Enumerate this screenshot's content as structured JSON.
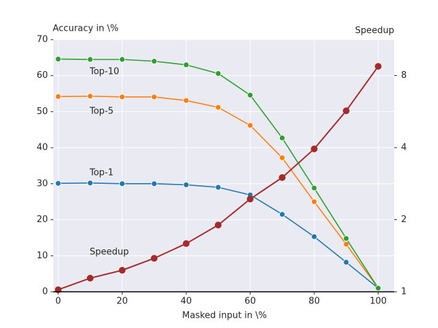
{
  "chart_data": {
    "type": "line",
    "ylabel": "Accuracy in \\%",
    "y2label": "Speedup",
    "xlabel": "Masked input in \\%",
    "x": [
      0,
      10,
      20,
      30,
      40,
      50,
      60,
      70,
      80,
      90,
      100
    ],
    "xlim": [
      -1.5,
      105
    ],
    "xticks": [
      0,
      20,
      40,
      60,
      80,
      100
    ],
    "ylim": [
      0,
      70
    ],
    "yticks": [
      0,
      10,
      20,
      30,
      40,
      50,
      60,
      70
    ],
    "y2lim": [
      1,
      11.3
    ],
    "y2ticks": [
      1,
      2,
      4,
      8
    ],
    "y2scale": "log",
    "grid": true,
    "series": [
      {
        "name": "Top-1",
        "color": "#1f77b4",
        "values": [
          30.1,
          30.2,
          30.0,
          30.0,
          29.7,
          29.0,
          26.9,
          21.5,
          15.3,
          8.2,
          1.0
        ]
      },
      {
        "name": "Top-5",
        "color": "#ff7f0e",
        "values": [
          54.2,
          54.3,
          54.1,
          54.1,
          53.1,
          51.2,
          46.2,
          37.2,
          25.0,
          13.2,
          1.0
        ]
      },
      {
        "name": "Top-10",
        "color": "#2ca02c",
        "values": [
          64.6,
          64.5,
          64.5,
          64.0,
          63.0,
          60.6,
          54.6,
          42.7,
          28.8,
          14.8,
          1.0
        ]
      },
      {
        "name": "Speedup",
        "color": "#a52a2a",
        "axis": "y2",
        "values": [
          1.02,
          1.14,
          1.23,
          1.38,
          1.59,
          1.9,
          2.44,
          3.0,
          3.95,
          5.7,
          8.74
        ]
      }
    ]
  }
}
